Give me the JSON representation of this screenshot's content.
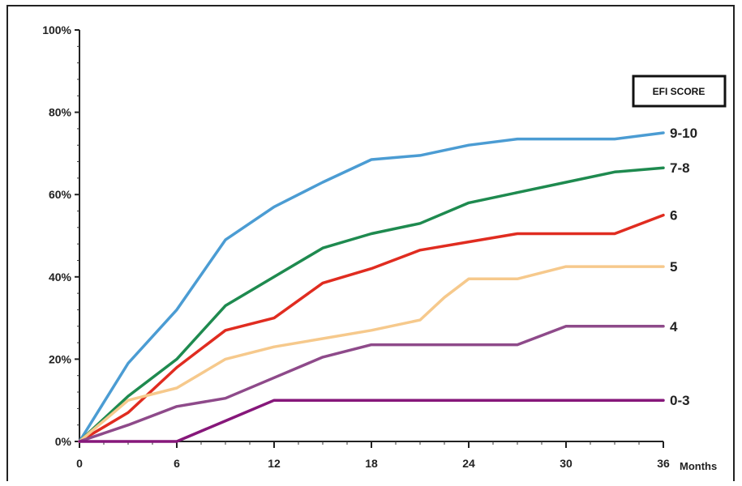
{
  "chart_data": {
    "type": "line",
    "title": "",
    "xlabel": "Months",
    "ylabel": "",
    "x_ticks": [
      0,
      6,
      12,
      18,
      24,
      30,
      36
    ],
    "y_ticks": [
      0,
      20,
      40,
      60,
      80,
      100
    ],
    "x_tick_labels": [
      "0",
      "6",
      "12",
      "18",
      "24",
      "30",
      "36"
    ],
    "y_tick_labels": [
      "0%",
      "20%",
      "40%",
      "60%",
      "80%",
      "100%"
    ],
    "xlim": [
      0,
      36
    ],
    "ylim": [
      0,
      100
    ],
    "grid": false,
    "legend_title": "EFI SCORE",
    "legend_placement": "right",
    "series": [
      {
        "name": "9-10",
        "color": "#4b9cd3",
        "points": [
          [
            0,
            0
          ],
          [
            3,
            19
          ],
          [
            6,
            32
          ],
          [
            9,
            49
          ],
          [
            12,
            57
          ],
          [
            15,
            63
          ],
          [
            18,
            68.5
          ],
          [
            21,
            69.5
          ],
          [
            24,
            72
          ],
          [
            27,
            73.5
          ],
          [
            30,
            73.5
          ],
          [
            33,
            73.5
          ],
          [
            36,
            75
          ]
        ]
      },
      {
        "name": "7-8",
        "color": "#1e8a4f",
        "points": [
          [
            0,
            0
          ],
          [
            3,
            11
          ],
          [
            6,
            20
          ],
          [
            9,
            33
          ],
          [
            12,
            40
          ],
          [
            15,
            47
          ],
          [
            18,
            50.5
          ],
          [
            21,
            53
          ],
          [
            24,
            58
          ],
          [
            27,
            60.5
          ],
          [
            30,
            63
          ],
          [
            33,
            65.5
          ],
          [
            36,
            66.5
          ]
        ]
      },
      {
        "name": "6",
        "color": "#e02c20",
        "points": [
          [
            0,
            0
          ],
          [
            3,
            7
          ],
          [
            6,
            18
          ],
          [
            9,
            27
          ],
          [
            12,
            30
          ],
          [
            15,
            38.5
          ],
          [
            18,
            42
          ],
          [
            21,
            46.5
          ],
          [
            24,
            48.5
          ],
          [
            27,
            50.5
          ],
          [
            30,
            50.5
          ],
          [
            33,
            50.5
          ],
          [
            36,
            55
          ]
        ]
      },
      {
        "name": "5",
        "color": "#f6c98c",
        "points": [
          [
            0,
            0
          ],
          [
            3,
            10
          ],
          [
            6,
            13
          ],
          [
            9,
            20
          ],
          [
            12,
            23
          ],
          [
            15,
            25
          ],
          [
            18,
            27
          ],
          [
            21,
            29.5
          ],
          [
            22.5,
            35
          ],
          [
            24,
            39.5
          ],
          [
            27,
            39.5
          ],
          [
            30,
            42.5
          ],
          [
            33,
            42.5
          ],
          [
            36,
            42.5
          ]
        ]
      },
      {
        "name": "4",
        "color": "#8e4a8a",
        "points": [
          [
            0,
            0
          ],
          [
            3,
            4
          ],
          [
            6,
            8.5
          ],
          [
            9,
            10.5
          ],
          [
            12,
            15.5
          ],
          [
            15,
            20.5
          ],
          [
            18,
            23.5
          ],
          [
            21,
            23.5
          ],
          [
            24,
            23.5
          ],
          [
            27,
            23.5
          ],
          [
            30,
            28
          ],
          [
            33,
            28
          ],
          [
            36,
            28
          ]
        ]
      },
      {
        "name": "0-3",
        "color": "#86177a",
        "points": [
          [
            0,
            0
          ],
          [
            6,
            0
          ],
          [
            9,
            5
          ],
          [
            12,
            10
          ],
          [
            15,
            10
          ],
          [
            18,
            10
          ],
          [
            21,
            10
          ],
          [
            24,
            10
          ],
          [
            27,
            10
          ],
          [
            30,
            10
          ],
          [
            33,
            10
          ],
          [
            36,
            10
          ]
        ]
      }
    ]
  }
}
